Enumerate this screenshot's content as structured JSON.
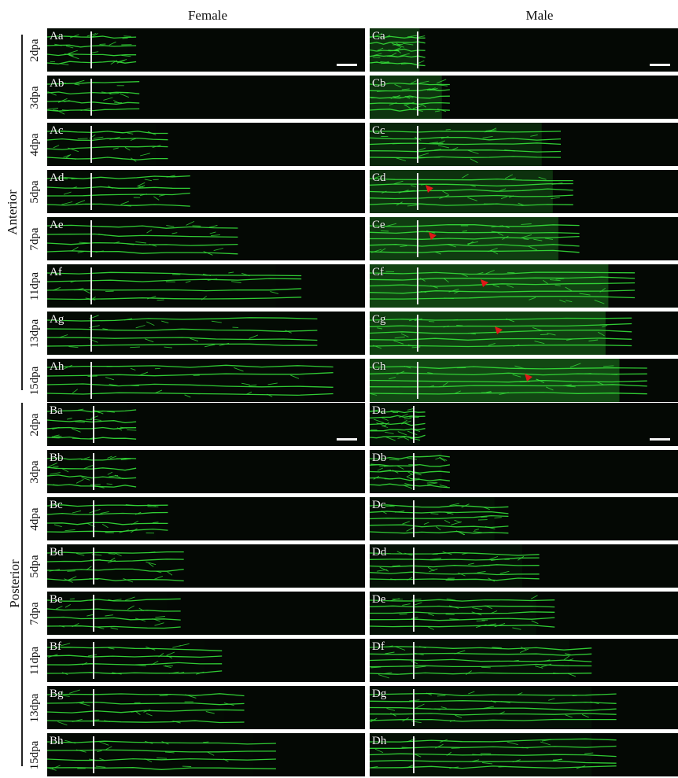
{
  "columns": {
    "female": "Female",
    "male": "Male"
  },
  "groups": {
    "anterior": "Anterior",
    "posterior": "Posterior"
  },
  "timepoints": [
    "2dpa",
    "3dpa",
    "4dpa",
    "5dpa",
    "7dpa",
    "11dpa",
    "13dpa",
    "15dpa"
  ],
  "panel_labels": {
    "A": [
      "Aa",
      "Ab",
      "Ac",
      "Ad",
      "Ae",
      "Af",
      "Ag",
      "Ah"
    ],
    "B": [
      "Ba",
      "Bb",
      "Bc",
      "Bd",
      "Be",
      "Bf",
      "Bg",
      "Bh"
    ],
    "C": [
      "Ca",
      "Cb",
      "Cc",
      "Cd",
      "Ce",
      "Cf",
      "Cg",
      "Ch"
    ],
    "D": [
      "Da",
      "Db",
      "Dc",
      "Dd",
      "De",
      "Df",
      "Dg",
      "Dh"
    ]
  },
  "colors": {
    "fluorescence": "#35e03a",
    "arrowhead": "#e01818",
    "background": "#040804"
  }
}
